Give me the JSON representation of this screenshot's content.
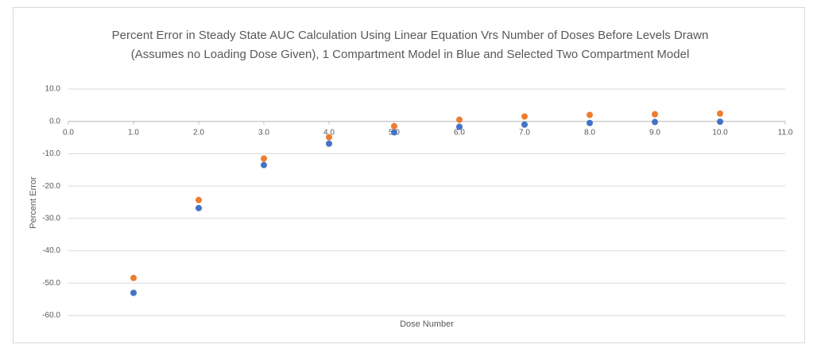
{
  "chart_data": {
    "type": "scatter",
    "title": "Percent Error in Steady State AUC Calculation Using Linear Equation Vrs Number of Doses Before Levels Drawn  (Assumes no Loading Dose Given), 1 Compartment Model in Blue and Selected Two Compartment Model",
    "x_label": "Dose Number",
    "y_label": "Percent Error",
    "x": [
      1,
      2,
      3,
      4,
      5,
      6,
      7,
      8,
      9,
      10
    ],
    "series": [
      {
        "color": "#4472c4",
        "values": [
          -53.0,
          -26.8,
          -13.5,
          -6.9,
          -3.4,
          -1.7,
          -1.0,
          -0.5,
          -0.2,
          -0.1
        ]
      },
      {
        "color": "#ed7d31",
        "values": [
          -48.4,
          -24.3,
          -11.5,
          -4.9,
          -1.5,
          0.5,
          1.5,
          2.0,
          2.2,
          2.4
        ]
      }
    ],
    "xlim": [
      0,
      11
    ],
    "ylim": [
      -60,
      10
    ],
    "xticks": [
      {
        "value": 0,
        "label": "0.0"
      },
      {
        "value": 1,
        "label": "1.0"
      },
      {
        "value": 2,
        "label": "2.0"
      },
      {
        "value": 3,
        "label": "3.0"
      },
      {
        "value": 4,
        "label": "4.0"
      },
      {
        "value": 5,
        "label": "5.0"
      },
      {
        "value": 6,
        "label": "6.0"
      },
      {
        "value": 7,
        "label": "7.0"
      },
      {
        "value": 8,
        "label": "8.0"
      },
      {
        "value": 9,
        "label": "9.0"
      },
      {
        "value": 10,
        "label": "10.0"
      },
      {
        "value": 11,
        "label": "11.0"
      }
    ],
    "yticks": [
      {
        "value": 10,
        "label": "10.0"
      },
      {
        "value": 0,
        "label": "0.0"
      },
      {
        "value": -10,
        "label": "-10.0"
      },
      {
        "value": -20,
        "label": "-20.0"
      },
      {
        "value": -30,
        "label": "-30.0"
      },
      {
        "value": -40,
        "label": "-40.0"
      },
      {
        "value": -50,
        "label": "-50.0"
      },
      {
        "value": -60,
        "label": "-60.0"
      }
    ],
    "grid": true
  }
}
